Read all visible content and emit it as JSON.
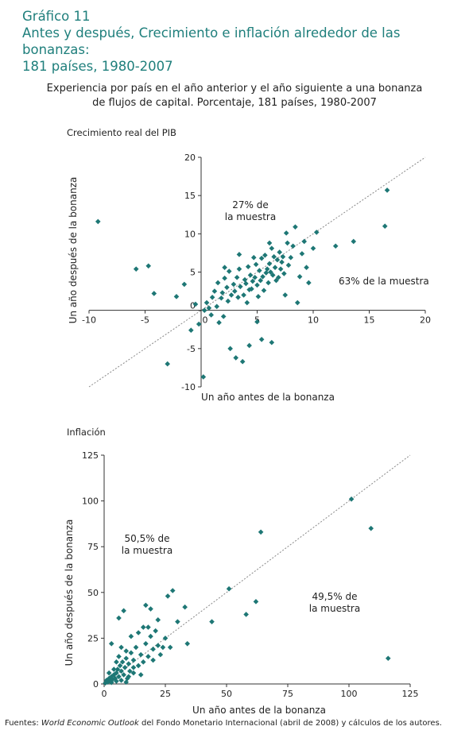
{
  "header": {
    "figure_number": "Gráfico 11",
    "title_line1": "Antes y después, Crecimiento e inflación alrededor de las bonanzas:",
    "title_line2": "181 países, 1980-2007"
  },
  "subtitle": {
    "line1": "Experiencia por país en el año anterior y el año siguiente a una bonanza",
    "line2": "de flujos de capital. Porcentaje, 181 países, 1980-2007"
  },
  "colors": {
    "marker": "#1e7775",
    "title": "#1f7f7c",
    "diagonal": "#888888"
  },
  "chart_data": [
    {
      "type": "scatter",
      "title": "Crecimiento real del PIB",
      "xlabel": "Un año antes de la bonanza",
      "ylabel": "Un año después de la bonanza",
      "xlim": [
        -10,
        20
      ],
      "ylim": [
        -10,
        20
      ],
      "xticks": [
        -10,
        -5,
        0,
        5,
        10,
        15,
        20
      ],
      "yticks": [
        -10,
        -5,
        0,
        5,
        10,
        15,
        20
      ],
      "axes_through_origin": true,
      "reference_line": "y = x",
      "annotations": [
        {
          "text_lines": [
            "27% de",
            "la muestra"
          ]
        },
        {
          "text_lines": [
            "63% de la muestra"
          ]
        }
      ],
      "points": [
        [
          -9.2,
          11.6
        ],
        [
          -5.8,
          5.4
        ],
        [
          -4.7,
          5.8
        ],
        [
          -4.2,
          2.2
        ],
        [
          -3,
          -7
        ],
        [
          -2.2,
          1.8
        ],
        [
          -1.5,
          3.4
        ],
        [
          -0.5,
          0.8
        ],
        [
          -0.2,
          -1.8
        ],
        [
          0.3,
          0
        ],
        [
          0.5,
          1
        ],
        [
          0.7,
          0.3
        ],
        [
          0.9,
          -0.6
        ],
        [
          1,
          1.7
        ],
        [
          1.2,
          2.5
        ],
        [
          1.4,
          0.5
        ],
        [
          1.5,
          3.6
        ],
        [
          1.8,
          1.6
        ],
        [
          1.9,
          2.3
        ],
        [
          2,
          -0.8
        ],
        [
          2.1,
          4.2
        ],
        [
          2.3,
          3
        ],
        [
          2.4,
          1.2
        ],
        [
          2.5,
          5.1
        ],
        [
          2.6,
          -5
        ],
        [
          2.7,
          2
        ],
        [
          2.9,
          3.4
        ],
        [
          3,
          2.5
        ],
        [
          3.1,
          -6.2
        ],
        [
          3.2,
          4.3
        ],
        [
          3.3,
          1.7
        ],
        [
          3.4,
          5.4
        ],
        [
          3.5,
          3.1
        ],
        [
          3.7,
          -6.7
        ],
        [
          3.8,
          2
        ],
        [
          3.9,
          4
        ],
        [
          4,
          3.5
        ],
        [
          4.1,
          1
        ],
        [
          4.2,
          5.7
        ],
        [
          4.3,
          2.7
        ],
        [
          4.4,
          4.6
        ],
        [
          4.5,
          2.8
        ],
        [
          4.6,
          3.8
        ],
        [
          4.8,
          4.3
        ],
        [
          4.9,
          6
        ],
        [
          5,
          3.3
        ],
        [
          5.1,
          1.8
        ],
        [
          5.2,
          5.2
        ],
        [
          5.3,
          3.9
        ],
        [
          5.4,
          6.8
        ],
        [
          5.5,
          4.4
        ],
        [
          5.6,
          2.6
        ],
        [
          5.7,
          7.2
        ],
        [
          5.8,
          4.9
        ],
        [
          5.9,
          5.4
        ],
        [
          6,
          3.6
        ],
        [
          6.1,
          6.1
        ],
        [
          6.2,
          5
        ],
        [
          6.3,
          8.1
        ],
        [
          6.4,
          4.6
        ],
        [
          6.5,
          7
        ],
        [
          6.6,
          5.6
        ],
        [
          6.7,
          3.9
        ],
        [
          6.8,
          6.6
        ],
        [
          6.9,
          4.3
        ],
        [
          7,
          7.6
        ],
        [
          7.1,
          5.4
        ],
        [
          7.2,
          6.3
        ],
        [
          7.3,
          7
        ],
        [
          7.4,
          4.8
        ],
        [
          7.5,
          2
        ],
        [
          7.7,
          8.8
        ],
        [
          7.8,
          5.9
        ],
        [
          8,
          6.9
        ],
        [
          8.2,
          8.4
        ],
        [
          8.4,
          10.9
        ],
        [
          8.6,
          1
        ],
        [
          8.8,
          4.4
        ],
        [
          9,
          7.4
        ],
        [
          9.2,
          9
        ],
        [
          9.4,
          5.6
        ],
        [
          9.6,
          3.6
        ],
        [
          10,
          8.1
        ],
        [
          10.3,
          10.2
        ],
        [
          12,
          8.4
        ],
        [
          13.6,
          9
        ],
        [
          16.4,
          11
        ],
        [
          16.6,
          15.7
        ],
        [
          5,
          -1.5
        ],
        [
          5.4,
          -3.8
        ],
        [
          6.3,
          -4.2
        ],
        [
          4.3,
          -4.6
        ],
        [
          0.2,
          -8.7
        ],
        [
          1.6,
          -1.6
        ],
        [
          -0.9,
          -2.6
        ],
        [
          3.4,
          7.3
        ],
        [
          4.7,
          6.9
        ],
        [
          6.1,
          8.8
        ],
        [
          2.1,
          5.6
        ],
        [
          7.6,
          10.1
        ]
      ]
    },
    {
      "type": "scatter",
      "title": "Inflación",
      "xlabel": "Un año antes de la bonanza",
      "ylabel": "Un año después de la bonanza",
      "xlim": [
        0,
        125
      ],
      "ylim": [
        0,
        125
      ],
      "xticks": [
        0,
        25,
        50,
        75,
        100,
        125
      ],
      "yticks": [
        0,
        25,
        50,
        75,
        100,
        125
      ],
      "reference_line": "y = x",
      "annotations": [
        {
          "text_lines": [
            "50,5% de",
            "la muestra"
          ]
        },
        {
          "text_lines": [
            "49,5% de",
            "la muestra"
          ]
        }
      ],
      "points": [
        [
          0.5,
          0.5
        ],
        [
          1,
          2
        ],
        [
          1.5,
          1
        ],
        [
          2,
          3
        ],
        [
          2.5,
          1.5
        ],
        [
          3,
          4
        ],
        [
          3,
          0.8
        ],
        [
          3.5,
          2.5
        ],
        [
          4,
          5
        ],
        [
          4.5,
          3
        ],
        [
          5,
          6
        ],
        [
          5,
          1.5
        ],
        [
          5.5,
          8
        ],
        [
          6,
          4
        ],
        [
          6.5,
          10
        ],
        [
          7,
          2
        ],
        [
          7,
          7
        ],
        [
          7.5,
          12
        ],
        [
          8,
          5
        ],
        [
          8.5,
          9
        ],
        [
          9,
          14
        ],
        [
          9.5,
          3
        ],
        [
          10,
          11
        ],
        [
          10.5,
          7
        ],
        [
          11,
          17
        ],
        [
          12,
          13
        ],
        [
          12,
          6
        ],
        [
          13,
          20
        ],
        [
          14,
          10
        ],
        [
          15,
          16
        ],
        [
          16,
          12
        ],
        [
          17,
          22
        ],
        [
          18,
          31
        ],
        [
          19,
          26
        ],
        [
          20,
          19
        ],
        [
          20,
          13
        ],
        [
          21,
          29
        ],
        [
          22,
          35
        ],
        [
          23,
          16
        ],
        [
          24,
          20
        ],
        [
          25,
          25
        ],
        [
          26,
          48
        ],
        [
          27,
          20
        ],
        [
          28,
          51
        ],
        [
          30,
          34
        ],
        [
          33,
          42
        ],
        [
          34,
          22
        ],
        [
          44,
          34
        ],
        [
          51,
          52
        ],
        [
          58,
          38
        ],
        [
          62,
          45
        ],
        [
          64,
          83
        ],
        [
          101,
          101
        ],
        [
          109,
          85
        ],
        [
          116,
          14
        ],
        [
          6,
          36
        ],
        [
          8,
          40
        ],
        [
          17,
          43
        ],
        [
          3,
          22
        ],
        [
          12,
          9
        ],
        [
          15,
          5
        ],
        [
          4,
          8
        ],
        [
          9,
          18
        ],
        [
          11,
          26
        ],
        [
          2,
          6
        ],
        [
          6,
          15
        ],
        [
          10,
          4
        ],
        [
          14,
          28
        ],
        [
          18,
          15
        ],
        [
          22,
          21
        ],
        [
          5,
          12
        ],
        [
          7,
          20
        ],
        [
          9,
          1
        ],
        [
          16,
          31
        ],
        [
          19,
          41
        ]
      ]
    }
  ],
  "footer": {
    "prefix": "Fuentes:",
    "source_italic": "World Economic Outlook",
    "suffix": "del Fondo Monetario Internacional (abril de 2008) y cálculos de los autores."
  }
}
